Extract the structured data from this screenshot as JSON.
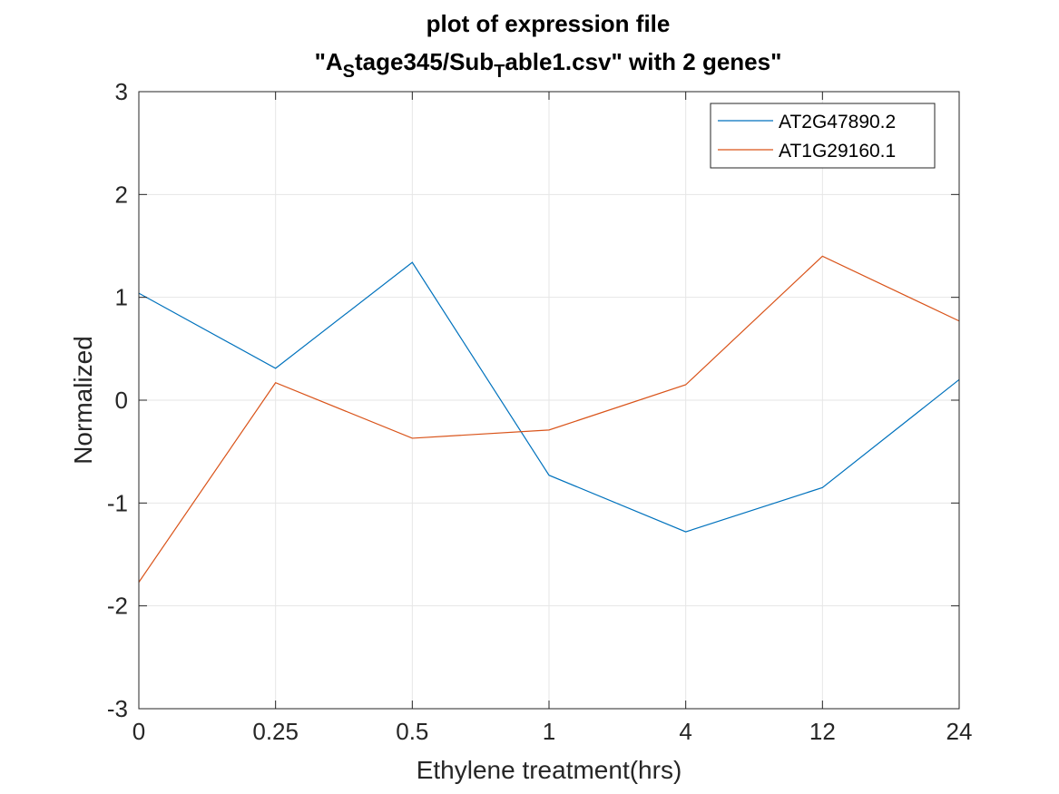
{
  "chart_data": {
    "type": "line",
    "title_line1": "plot of expression file",
    "title_line2": {
      "prefix": "\"A",
      "sub1": "S",
      "middle": "tage345/Sub",
      "sub2": "T",
      "suffix": "able1.csv\" with 2 genes\""
    },
    "xlabel": "Ethylene treatment(hrs)",
    "ylabel": "Normalized",
    "categories": [
      "0",
      "0.25",
      "0.5",
      "1",
      "4",
      "12",
      "24"
    ],
    "yticks": [
      "-3",
      "-2",
      "-1",
      "0",
      "1",
      "2",
      "3"
    ],
    "ylim": [
      -3,
      3
    ],
    "grid": true,
    "box": true,
    "legend_placement": "top-right",
    "series": [
      {
        "name": "AT2G47890.2",
        "color": "#0072BD",
        "values": [
          1.04,
          0.31,
          1.34,
          -0.73,
          -1.28,
          -0.85,
          0.2
        ]
      },
      {
        "name": "AT1G29160.1",
        "color": "#D95319",
        "values": [
          -1.77,
          0.17,
          -0.37,
          -0.29,
          0.15,
          1.4,
          0.77
        ]
      }
    ]
  }
}
